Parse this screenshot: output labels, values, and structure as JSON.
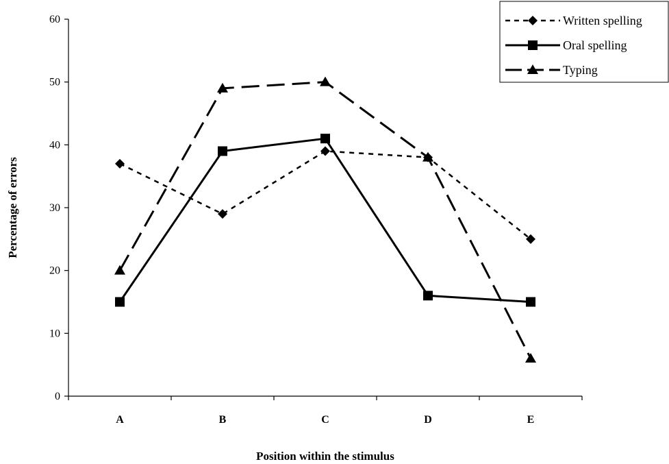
{
  "chart_data": {
    "type": "line",
    "categories": [
      "A",
      "B",
      "C",
      "D",
      "E"
    ],
    "series": [
      {
        "name": "Written spelling",
        "values": [
          37,
          29,
          39,
          38,
          25
        ],
        "line_style": "dotted",
        "marker": "diamond",
        "color": "#000000"
      },
      {
        "name": "Oral spelling",
        "values": [
          15,
          39,
          41,
          16,
          15
        ],
        "line_style": "solid",
        "marker": "square",
        "color": "#000000"
      },
      {
        "name": "Typing",
        "values": [
          20,
          49,
          50,
          38,
          6
        ],
        "line_style": "long-dash",
        "marker": "triangle",
        "color": "#000000"
      }
    ],
    "xlabel": "Position within the stimulus",
    "ylabel": "Percentage of errors",
    "ylim": [
      0,
      60
    ],
    "yticks": [
      0,
      10,
      20,
      30,
      40,
      50,
      60
    ],
    "grid": false,
    "legend_position": "top-right"
  }
}
